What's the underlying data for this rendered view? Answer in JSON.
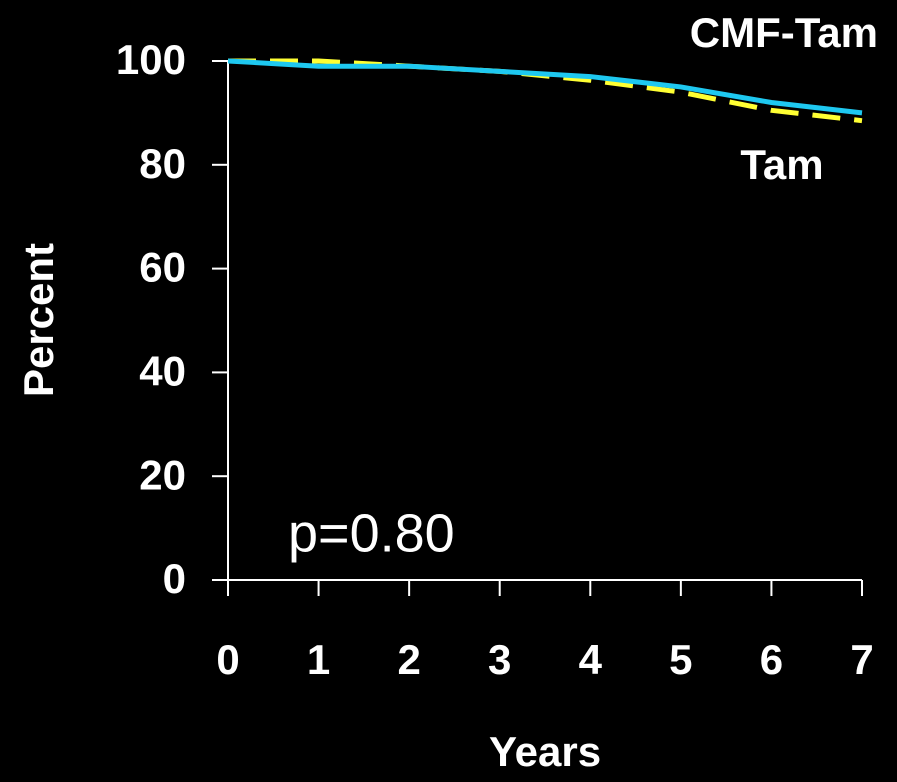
{
  "chart_data": {
    "type": "line",
    "x": [
      0,
      1,
      2,
      3,
      4,
      5,
      6,
      7
    ],
    "series": [
      {
        "name": "CMF-Tam",
        "color": "#1ec8f0",
        "values": [
          100,
          99,
          99,
          98,
          97,
          95,
          92,
          90
        ]
      },
      {
        "name": "Tam",
        "color": "#ffff33",
        "dashed": true,
        "values": [
          100,
          100,
          99,
          98,
          96.3,
          94,
          90.5,
          88.5
        ]
      }
    ],
    "xlim": [
      0,
      7
    ],
    "xticks": [
      0,
      1,
      2,
      3,
      4,
      5,
      6,
      7
    ],
    "ylim": [
      0,
      100
    ],
    "yticks": [
      0,
      20,
      40,
      60,
      80,
      100
    ],
    "xlabel": "Years",
    "ylabel": "Percent",
    "annotation": "p=0.80"
  }
}
